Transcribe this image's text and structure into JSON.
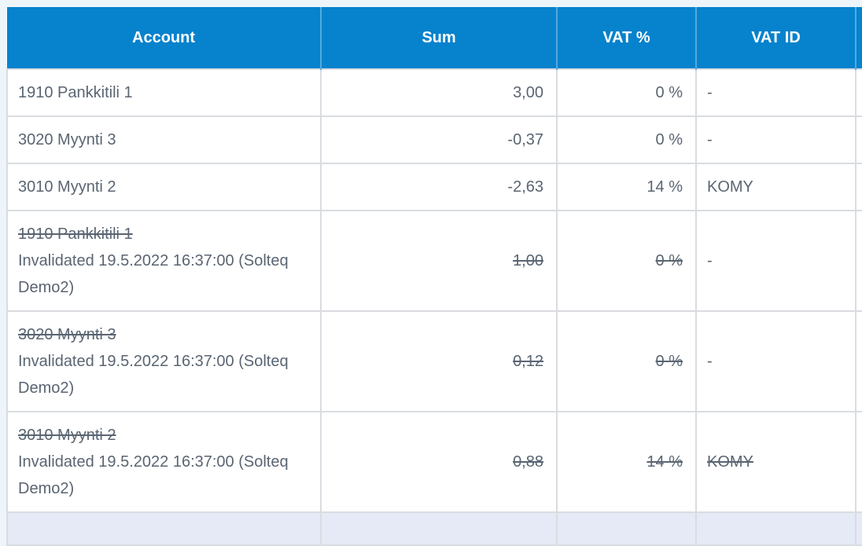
{
  "colors": {
    "page-bg": "#eef5fa",
    "header-bg": "#0782cd",
    "header-divider": "#55aadc",
    "header-text": "#ffffff",
    "grid-line": "#d9dce0",
    "text": "#5a6572",
    "footer-bg": "#e5eaf6",
    "row-bg": "#ffffff"
  },
  "table": {
    "header": {
      "columns": [
        {
          "label": "Account"
        },
        {
          "label": "Sum"
        },
        {
          "label": "VAT %"
        },
        {
          "label": "VAT ID"
        },
        {
          "label": ""
        }
      ]
    },
    "rows": [
      {
        "account": "1910 Pankkitili 1",
        "invalidated_note": "",
        "sum": "3,00",
        "vat_percent": "0 %",
        "vat_id": "-",
        "invalidated": false
      },
      {
        "account": "3020 Myynti 3",
        "invalidated_note": "",
        "sum": "-0,37",
        "vat_percent": "0 %",
        "vat_id": "-",
        "invalidated": false
      },
      {
        "account": "3010 Myynti 2",
        "invalidated_note": "",
        "sum": "-2,63",
        "vat_percent": "14 %",
        "vat_id": "KOMY",
        "invalidated": false
      },
      {
        "account": "1910 Pankkitili 1",
        "invalidated_note": "Invalidated 19.5.2022 16:37:00 (Solteq Demo2)",
        "sum": "1,00",
        "vat_percent": "0 %",
        "vat_id": "-",
        "invalidated": true
      },
      {
        "account": "3020 Myynti 3",
        "invalidated_note": "Invalidated 19.5.2022 16:37:00 (Solteq Demo2)",
        "sum": "0,12",
        "vat_percent": "0 %",
        "vat_id": "-",
        "invalidated": true
      },
      {
        "account": "3010 Myynti 2",
        "invalidated_note": "Invalidated 19.5.2022 16:37:00 (Solteq Demo2)",
        "sum": "0,88",
        "vat_percent": "14 %",
        "vat_id": "KOMY",
        "invalidated": true
      }
    ]
  }
}
